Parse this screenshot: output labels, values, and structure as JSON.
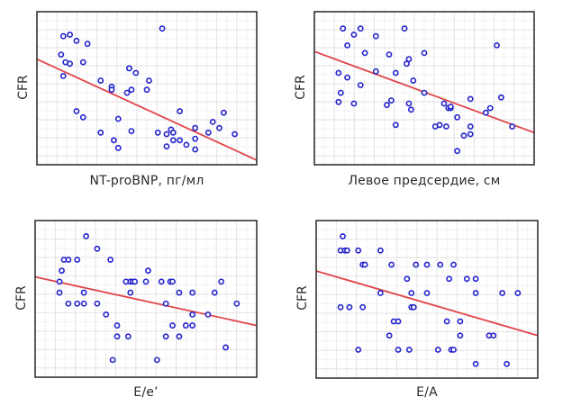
{
  "figure": {
    "description": "Four scatter plots of CFR against echocardiographic / biomarker variables with linear regression lines",
    "point_color": "#2222cc",
    "line_color": "#e0454a",
    "frame_color": "#333333",
    "grid_color": "#e6e6e6"
  },
  "chart_data": [
    {
      "type": "scatter",
      "title": "",
      "xlabel": "NT-proBNP, пг/мл",
      "ylabel": "CFR",
      "xlim": [
        0,
        1
      ],
      "ylim": [
        0,
        1
      ],
      "grid": true,
      "axis_ticks": "none",
      "units_note": "axes unlabeled; values normalized to plot frame",
      "regression": {
        "y_at_x0": 0.69,
        "y_at_x1": 0.03
      },
      "points": [
        [
          0.12,
          0.84
        ],
        [
          0.15,
          0.85
        ],
        [
          0.18,
          0.81
        ],
        [
          0.23,
          0.79
        ],
        [
          0.11,
          0.72
        ],
        [
          0.13,
          0.67
        ],
        [
          0.15,
          0.66
        ],
        [
          0.21,
          0.67
        ],
        [
          0.12,
          0.58
        ],
        [
          0.29,
          0.55
        ],
        [
          0.34,
          0.51
        ],
        [
          0.34,
          0.49
        ],
        [
          0.41,
          0.47
        ],
        [
          0.43,
          0.49
        ],
        [
          0.42,
          0.63
        ],
        [
          0.42,
          0.63
        ],
        [
          0.45,
          0.6
        ],
        [
          0.51,
          0.55
        ],
        [
          0.5,
          0.49
        ],
        [
          0.57,
          0.89
        ],
        [
          0.18,
          0.35
        ],
        [
          0.21,
          0.31
        ],
        [
          0.29,
          0.21
        ],
        [
          0.37,
          0.3
        ],
        [
          0.35,
          0.16
        ],
        [
          0.37,
          0.11
        ],
        [
          0.43,
          0.22
        ],
        [
          0.55,
          0.21
        ],
        [
          0.59,
          0.12
        ],
        [
          0.59,
          0.2
        ],
        [
          0.61,
          0.23
        ],
        [
          0.62,
          0.21
        ],
        [
          0.62,
          0.16
        ],
        [
          0.65,
          0.16
        ],
        [
          0.68,
          0.13
        ],
        [
          0.65,
          0.35
        ],
        [
          0.72,
          0.24
        ],
        [
          0.72,
          0.17
        ],
        [
          0.72,
          0.1
        ],
        [
          0.78,
          0.21
        ],
        [
          0.8,
          0.28
        ],
        [
          0.83,
          0.24
        ],
        [
          0.85,
          0.34
        ],
        [
          0.9,
          0.2
        ]
      ]
    },
    {
      "type": "scatter",
      "title": "",
      "xlabel": "Левое предсердие, см",
      "ylabel": "CFR",
      "xlim": [
        0,
        1
      ],
      "ylim": [
        0,
        1
      ],
      "grid": true,
      "axis_ticks": "none",
      "units_note": "axes unlabeled; values normalized to plot frame",
      "regression": {
        "y_at_x0": 0.74,
        "y_at_x1": 0.21
      },
      "points": [
        [
          0.13,
          0.89
        ],
        [
          0.18,
          0.85
        ],
        [
          0.21,
          0.89
        ],
        [
          0.28,
          0.84
        ],
        [
          0.15,
          0.78
        ],
        [
          0.23,
          0.73
        ],
        [
          0.34,
          0.72
        ],
        [
          0.41,
          0.89
        ],
        [
          0.5,
          0.73
        ],
        [
          0.43,
          0.69
        ],
        [
          0.42,
          0.66
        ],
        [
          0.28,
          0.61
        ],
        [
          0.37,
          0.6
        ],
        [
          0.45,
          0.55
        ],
        [
          0.5,
          0.47
        ],
        [
          0.11,
          0.6
        ],
        [
          0.15,
          0.57
        ],
        [
          0.21,
          0.52
        ],
        [
          0.12,
          0.47
        ],
        [
          0.11,
          0.41
        ],
        [
          0.18,
          0.4
        ],
        [
          0.33,
          0.39
        ],
        [
          0.35,
          0.42
        ],
        [
          0.43,
          0.4
        ],
        [
          0.44,
          0.36
        ],
        [
          0.37,
          0.26
        ],
        [
          0.59,
          0.4
        ],
        [
          0.61,
          0.37
        ],
        [
          0.62,
          0.37
        ],
        [
          0.62,
          0.38
        ],
        [
          0.65,
          0.31
        ],
        [
          0.55,
          0.25
        ],
        [
          0.57,
          0.26
        ],
        [
          0.6,
          0.25
        ],
        [
          0.68,
          0.19
        ],
        [
          0.65,
          0.09
        ],
        [
          0.71,
          0.43
        ],
        [
          0.71,
          0.25
        ],
        [
          0.71,
          0.2
        ],
        [
          0.78,
          0.34
        ],
        [
          0.8,
          0.37
        ],
        [
          0.83,
          0.78
        ],
        [
          0.85,
          0.44
        ],
        [
          0.9,
          0.25
        ]
      ]
    },
    {
      "type": "scatter",
      "title": "",
      "xlabel": "E/e’",
      "ylabel": "CFR",
      "xlim": [
        0,
        1
      ],
      "ylim": [
        0,
        1
      ],
      "grid": true,
      "axis_ticks": "none",
      "units_note": "axes unlabeled; values normalized to plot frame",
      "regression": {
        "y_at_x0": 0.64,
        "y_at_x1": 0.33
      },
      "points": [
        [
          0.23,
          0.9
        ],
        [
          0.28,
          0.82
        ],
        [
          0.13,
          0.75
        ],
        [
          0.15,
          0.75
        ],
        [
          0.19,
          0.75
        ],
        [
          0.34,
          0.75
        ],
        [
          0.12,
          0.68
        ],
        [
          0.11,
          0.61
        ],
        [
          0.11,
          0.54
        ],
        [
          0.15,
          0.47
        ],
        [
          0.19,
          0.47
        ],
        [
          0.22,
          0.47
        ],
        [
          0.22,
          0.54
        ],
        [
          0.28,
          0.47
        ],
        [
          0.32,
          0.4
        ],
        [
          0.37,
          0.33
        ],
        [
          0.37,
          0.26
        ],
        [
          0.42,
          0.26
        ],
        [
          0.35,
          0.11
        ],
        [
          0.41,
          0.61
        ],
        [
          0.43,
          0.61
        ],
        [
          0.44,
          0.61
        ],
        [
          0.45,
          0.61
        ],
        [
          0.43,
          0.54
        ],
        [
          0.5,
          0.61
        ],
        [
          0.51,
          0.68
        ],
        [
          0.57,
          0.61
        ],
        [
          0.61,
          0.61
        ],
        [
          0.62,
          0.61
        ],
        [
          0.59,
          0.47
        ],
        [
          0.55,
          0.11
        ],
        [
          0.59,
          0.26
        ],
        [
          0.62,
          0.33
        ],
        [
          0.65,
          0.26
        ],
        [
          0.68,
          0.33
        ],
        [
          0.71,
          0.33
        ],
        [
          0.65,
          0.54
        ],
        [
          0.71,
          0.54
        ],
        [
          0.71,
          0.4
        ],
        [
          0.78,
          0.4
        ],
        [
          0.81,
          0.54
        ],
        [
          0.84,
          0.61
        ],
        [
          0.86,
          0.19
        ],
        [
          0.91,
          0.47
        ]
      ]
    },
    {
      "type": "scatter",
      "title": "",
      "xlabel": "E/A",
      "ylabel": "CFR",
      "xlim": [
        0,
        1
      ],
      "ylim": [
        0,
        1
      ],
      "grid": true,
      "axis_ticks": "none",
      "units_note": "axes unlabeled; values normalized to plot frame",
      "regression": {
        "y_at_x0": 0.68,
        "y_at_x1": 0.27
      },
      "points": [
        [
          0.12,
          0.9
        ],
        [
          0.11,
          0.81
        ],
        [
          0.13,
          0.81
        ],
        [
          0.14,
          0.81
        ],
        [
          0.19,
          0.81
        ],
        [
          0.29,
          0.81
        ],
        [
          0.21,
          0.72
        ],
        [
          0.22,
          0.72
        ],
        [
          0.34,
          0.72
        ],
        [
          0.45,
          0.72
        ],
        [
          0.5,
          0.72
        ],
        [
          0.56,
          0.72
        ],
        [
          0.62,
          0.72
        ],
        [
          0.41,
          0.63
        ],
        [
          0.6,
          0.63
        ],
        [
          0.68,
          0.63
        ],
        [
          0.72,
          0.63
        ],
        [
          0.29,
          0.54
        ],
        [
          0.43,
          0.54
        ],
        [
          0.5,
          0.54
        ],
        [
          0.72,
          0.54
        ],
        [
          0.84,
          0.54
        ],
        [
          0.91,
          0.54
        ],
        [
          0.11,
          0.45
        ],
        [
          0.15,
          0.45
        ],
        [
          0.21,
          0.45
        ],
        [
          0.43,
          0.45
        ],
        [
          0.44,
          0.45
        ],
        [
          0.35,
          0.36
        ],
        [
          0.37,
          0.36
        ],
        [
          0.59,
          0.36
        ],
        [
          0.65,
          0.36
        ],
        [
          0.33,
          0.27
        ],
        [
          0.65,
          0.27
        ],
        [
          0.78,
          0.27
        ],
        [
          0.8,
          0.27
        ],
        [
          0.19,
          0.18
        ],
        [
          0.37,
          0.18
        ],
        [
          0.42,
          0.18
        ],
        [
          0.55,
          0.18
        ],
        [
          0.61,
          0.18
        ],
        [
          0.62,
          0.18
        ],
        [
          0.72,
          0.09
        ],
        [
          0.86,
          0.09
        ]
      ]
    }
  ]
}
